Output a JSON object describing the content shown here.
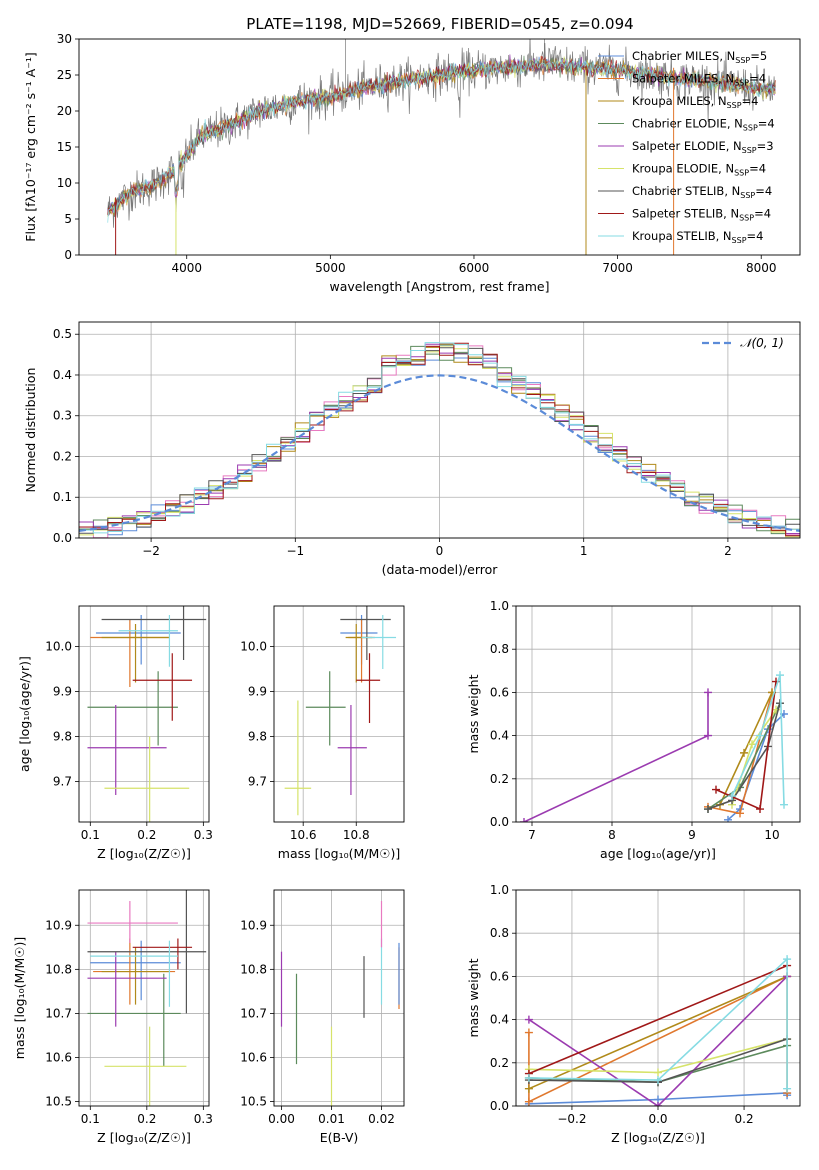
{
  "figure": {
    "title": "PLATE=1198, MJD=52669, FIBERID=0545, z=0.094"
  },
  "colors": [
    "#5b8bd8",
    "#e0782e",
    "#b08a1a",
    "#5c8a5c",
    "#9b3bb0",
    "#d6e36a",
    "#555555",
    "#a01818",
    "#86dbe3"
  ],
  "chart_data": [
    {
      "id": "spectrum",
      "type": "line",
      "xlabel": "wavelength [Angstrom, rest frame]",
      "ylabel": "Flux [f$_\\lambda$10$^{-17}$ erg cm$^{-2}$ s$^{-1}$ A$^{-1}$]",
      "ylabel_display": "Flux [fλ10⁻¹⁷ erg cm⁻² s⁻¹ A⁻¹]",
      "xlim": [
        3250,
        8270
      ],
      "ylim": [
        0,
        30
      ],
      "xticks": [
        4000,
        5000,
        6000,
        7000,
        8000
      ],
      "yticks": [
        0,
        5,
        10,
        15,
        20,
        25,
        30
      ],
      "legend_position": "upper-right",
      "series": [
        {
          "name": "Chabrier MILES, N$_{SSP}$=5",
          "display": "Chabrier MILES, N_SSP=5"
        },
        {
          "name": "Salpeter MILES, N$_{SSP}$=4",
          "display": "Salpeter MILES, N_SSP=4"
        },
        {
          "name": "Kroupa MILES, N$_{SSP}$=4",
          "display": "Kroupa MILES, N_SSP=4"
        },
        {
          "name": "Chabrier ELODIE, N$_{SSP}$=4",
          "display": "Chabrier ELODIE, N_SSP=4"
        },
        {
          "name": "Salpeter ELODIE, N$_{SSP}$=3",
          "display": "Salpeter ELODIE, N_SSP=3"
        },
        {
          "name": "Kroupa ELODIE, N$_{SSP}$=4",
          "display": "Kroupa ELODIE, N_SSP=4"
        },
        {
          "name": "Chabrier STELIB, N$_{SSP}$=4",
          "display": "Chabrier STELIB, N_SSP=4"
        },
        {
          "name": "Salpeter STELIB, N$_{SSP}$=4",
          "display": "Salpeter STELIB, N_SSP=4"
        },
        {
          "name": "Kroupa STELIB, N$_{SSP}$=4",
          "display": "Kroupa STELIB, N_SSP=4"
        }
      ],
      "continuum": {
        "x": [
          3450,
          3600,
          3800,
          3950,
          4100,
          4300,
          4500,
          4800,
          5000,
          5300,
          5600,
          5900,
          6200,
          6500,
          6800,
          7100,
          7400,
          7700,
          8000,
          8100
        ],
        "y": [
          6,
          8.5,
          10,
          12.5,
          16.5,
          18,
          20,
          21.5,
          22,
          23.5,
          24.5,
          25.5,
          26,
          26.5,
          26,
          25.5,
          24.5,
          24,
          23,
          23
        ]
      },
      "dropouts_x": [
        3505,
        3925,
        6780,
        7390
      ]
    },
    {
      "id": "residuals",
      "type": "histogram",
      "xlabel": "(data-model)/error",
      "ylabel": "Normed distribution",
      "xlim": [
        -2.5,
        2.5
      ],
      "ylim": [
        0,
        0.53
      ],
      "xticks": [
        -2,
        -1,
        0,
        1,
        2
      ],
      "xtick_labels": [
        "−2",
        "−1",
        "0",
        "1",
        "2"
      ],
      "yticks": [
        0.0,
        0.1,
        0.2,
        0.3,
        0.4,
        0.5
      ],
      "grid": true,
      "reference_curve": {
        "label": "$\\mathcal{N}(0,1)$",
        "display": "𝒩(0, 1)",
        "style": "dashed",
        "mean": 0,
        "sd": 1
      },
      "bin_width": 0.1,
      "legend_position": "upper-right"
    },
    {
      "id": "age_vs_Z",
      "type": "scatter",
      "xlabel": "Z [log$_{10}$($Z/Z_\\odot$)]",
      "xlabel_display": "Z [log₁₀(Z/Z☉)]",
      "ylabel": "age  [log$_{10}$($age/yr$)]",
      "ylabel_display": "age  [log₁₀(age/yr)]",
      "xlim": [
        0.08,
        0.31
      ],
      "ylim": [
        9.61,
        10.09
      ],
      "xticks": [
        0.1,
        0.2,
        0.3
      ],
      "yticks": [
        9.7,
        9.8,
        9.9,
        10.0
      ],
      "points": [
        {
          "c": 0,
          "x": 0.19,
          "y": 10.03,
          "xerr": [
            0.11,
            0.26
          ],
          "yerr": [
            9.96,
            10.07
          ]
        },
        {
          "c": 1,
          "x": 0.17,
          "y": 10.02,
          "xerr": [
            0.1,
            0.24
          ],
          "yerr": [
            9.91,
            10.06
          ]
        },
        {
          "c": 2,
          "x": 0.18,
          "y": 10.02,
          "xerr": [
            0.12,
            0.24
          ],
          "yerr": [
            9.92,
            10.05
          ]
        },
        {
          "c": 3,
          "x": 0.22,
          "y": 9.865,
          "xerr": [
            0.095,
            0.255
          ],
          "yerr": [
            9.78,
            9.945
          ]
        },
        {
          "c": 4,
          "x": 0.145,
          "y": 9.775,
          "xerr": [
            0.095,
            0.235
          ],
          "yerr": [
            9.67,
            9.87
          ]
        },
        {
          "c": 5,
          "x": 0.205,
          "y": 9.685,
          "xerr": [
            0.125,
            0.275
          ],
          "yerr": [
            9.61,
            9.8
          ]
        },
        {
          "c": 6,
          "x": 0.265,
          "y": 10.06,
          "xerr": [
            0.12,
            0.305
          ],
          "yerr": [
            9.97,
            10.09
          ]
        },
        {
          "c": 7,
          "x": 0.245,
          "y": 9.925,
          "xerr": [
            0.175,
            0.28
          ],
          "yerr": [
            9.835,
            9.985
          ]
        },
        {
          "c": 8,
          "x": 0.24,
          "y": 10.035,
          "xerr": [
            0.15,
            0.255
          ],
          "yerr": [
            9.955,
            10.07
          ]
        }
      ]
    },
    {
      "id": "age_vs_mass",
      "type": "scatter",
      "xlabel": "mass [log$_{10}$($M/M_\\odot$)]",
      "xlabel_display": "mass [log₁₀(M/M☉)]",
      "xlim": [
        10.49,
        10.98
      ],
      "ylim": [
        9.61,
        10.09
      ],
      "xticks": [
        10.6,
        10.8
      ],
      "yticks": [
        9.7,
        9.8,
        9.9,
        10.0
      ],
      "points": [
        {
          "c": 0,
          "x": 10.82,
          "y": 10.03,
          "xerr": [
            10.74,
            10.88
          ],
          "yerr": [
            9.96,
            10.07
          ]
        },
        {
          "c": 1,
          "x": 10.82,
          "y": 10.02,
          "xerr": [
            10.77,
            10.87
          ],
          "yerr": [
            9.92,
            10.06
          ]
        },
        {
          "c": 2,
          "x": 10.8,
          "y": 10.02,
          "xerr": [
            10.76,
            10.86
          ],
          "yerr": [
            9.92,
            10.05
          ]
        },
        {
          "c": 3,
          "x": 10.7,
          "y": 9.865,
          "xerr": [
            10.61,
            10.76
          ],
          "yerr": [
            9.78,
            9.945
          ]
        },
        {
          "c": 4,
          "x": 10.78,
          "y": 9.775,
          "xerr": [
            10.73,
            10.84
          ],
          "yerr": [
            9.67,
            9.87
          ]
        },
        {
          "c": 5,
          "x": 10.58,
          "y": 9.685,
          "xerr": [
            10.53,
            10.63
          ],
          "yerr": [
            9.625,
            9.88
          ]
        },
        {
          "c": 6,
          "x": 10.84,
          "y": 10.06,
          "xerr": [
            10.74,
            10.93
          ],
          "yerr": [
            9.97,
            10.09
          ]
        },
        {
          "c": 7,
          "x": 10.85,
          "y": 9.925,
          "xerr": [
            10.8,
            10.89
          ],
          "yerr": [
            9.83,
            9.985
          ]
        },
        {
          "c": 8,
          "x": 10.9,
          "y": 10.02,
          "xerr": [
            10.82,
            10.95
          ],
          "yerr": [
            9.95,
            10.07
          ]
        }
      ]
    },
    {
      "id": "massweight_vs_age",
      "type": "line",
      "xlabel": "age  [log$_{10}$($age/yr$)]",
      "xlabel_display": "age  [log₁₀(age/yr)]",
      "ylabel": "mass weight",
      "xlim": [
        6.8,
        10.35
      ],
      "ylim": [
        0,
        1.0
      ],
      "xticks": [
        7,
        8,
        9,
        10
      ],
      "yticks": [
        0.0,
        0.2,
        0.4,
        0.6,
        0.8,
        1.0
      ],
      "series": [
        {
          "c": 0,
          "x": [
            9.45,
            9.6,
            9.95,
            10.15
          ],
          "y": [
            0.01,
            0.06,
            0.43,
            0.5
          ]
        },
        {
          "c": 1,
          "x": [
            9.2,
            9.6,
            10.0
          ],
          "y": [
            0.07,
            0.04,
            0.6
          ]
        },
        {
          "c": 2,
          "x": [
            9.35,
            9.65,
            10.0
          ],
          "y": [
            0.08,
            0.32,
            0.6
          ]
        },
        {
          "c": 3,
          "x": [
            9.2,
            9.6,
            10.1
          ],
          "y": [
            0.06,
            0.16,
            0.55
          ]
        },
        {
          "c": 4,
          "x": [
            6.9,
            9.2,
            9.2
          ],
          "y": [
            0.0,
            0.4,
            0.6
          ]
        },
        {
          "c": 5,
          "x": [
            9.5,
            9.75,
            10.05
          ],
          "y": [
            0.08,
            0.36,
            0.52
          ]
        },
        {
          "c": 6,
          "x": [
            9.2,
            9.5,
            9.95,
            10.1
          ],
          "y": [
            0.06,
            0.1,
            0.35,
            0.55
          ]
        },
        {
          "c": 7,
          "x": [
            9.3,
            9.85,
            10.05
          ],
          "y": [
            0.15,
            0.06,
            0.65
          ]
        },
        {
          "c": 8,
          "x": [
            9.5,
            9.85,
            10.1,
            10.15
          ],
          "y": [
            0.12,
            0.4,
            0.68,
            0.08
          ]
        }
      ]
    },
    {
      "id": "mass_vs_Z",
      "type": "scatter",
      "xlabel": "Z [log$_{10}$($Z/Z_\\odot$)]",
      "xlabel_display": "Z [log₁₀(Z/Z☉)]",
      "ylabel": "mass [log$_{10}$($M/M_\\odot$)]",
      "ylabel_display": "mass [log₁₀(M/M☉)]",
      "xlim": [
        0.08,
        0.31
      ],
      "ylim": [
        10.49,
        10.98
      ],
      "xticks": [
        0.1,
        0.2,
        0.3
      ],
      "yticks": [
        10.5,
        10.6,
        10.7,
        10.8,
        10.9
      ],
      "points": [
        {
          "c": 0,
          "x": 0.19,
          "y": 10.815,
          "xerr": [
            0.1,
            0.26
          ],
          "yerr": [
            10.73,
            10.865
          ]
        },
        {
          "c": 1,
          "x": 0.17,
          "y": 10.795,
          "xerr": [
            0.105,
            0.25
          ],
          "yerr": [
            10.72,
            10.87
          ]
        },
        {
          "c": 2,
          "x": 0.18,
          "y": 10.795,
          "xerr": [
            0.12,
            0.24
          ],
          "yerr": [
            10.72,
            10.85
          ]
        },
        {
          "c": 3,
          "x": 0.23,
          "y": 10.7,
          "xerr": [
            0.095,
            0.26
          ],
          "yerr": [
            10.58,
            10.79
          ]
        },
        {
          "c": 4,
          "x": 0.145,
          "y": 10.78,
          "xerr": [
            0.095,
            0.235
          ],
          "yerr": [
            10.67,
            10.84
          ]
        },
        {
          "c": 5,
          "x": 0.205,
          "y": 10.58,
          "xerr": [
            0.125,
            0.27
          ],
          "yerr": [
            10.49,
            10.67
          ]
        },
        {
          "c": 6,
          "x": 0.27,
          "y": 10.84,
          "xerr": [
            0.095,
            0.305
          ],
          "yerr": [
            10.7,
            10.98
          ]
        },
        {
          "c": 7,
          "x": 0.255,
          "y": 10.85,
          "xerr": [
            0.175,
            0.28
          ],
          "yerr": [
            10.8,
            10.87
          ]
        },
        {
          "c": 8,
          "x": 0.24,
          "y": 10.83,
          "xerr": [
            0.1,
            0.255
          ],
          "yerr": [
            10.715,
            10.865
          ]
        },
        {
          "c": 1,
          "x": 0.17,
          "y": 10.905,
          "xerr": [
            0.095,
            0.255
          ],
          "yerr": [
            10.86,
            10.955
          ],
          "pink": true
        }
      ]
    },
    {
      "id": "mass_vs_ebv",
      "type": "scatter",
      "xlabel": "E(B-V)",
      "xlim": [
        -0.0015,
        0.0245
      ],
      "ylim": [
        10.49,
        10.98
      ],
      "xticks": [
        0.0,
        0.01,
        0.02
      ],
      "xtick_labels": [
        "0.00",
        "0.01",
        "0.02"
      ],
      "yticks": [
        10.5,
        10.6,
        10.7,
        10.8,
        10.9
      ],
      "points": [
        {
          "c": 4,
          "x": 0.0,
          "y": 10.78,
          "yerr": [
            10.67,
            10.84
          ]
        },
        {
          "c": 3,
          "x": 0.003,
          "y": 10.7,
          "yerr": [
            10.585,
            10.79
          ]
        },
        {
          "c": 5,
          "x": 0.01,
          "y": 10.58,
          "yerr": [
            10.49,
            10.67
          ]
        },
        {
          "c": 6,
          "x": 0.0165,
          "y": 10.79,
          "yerr": [
            10.69,
            10.83
          ]
        },
        {
          "c": 8,
          "x": 0.02,
          "y": 10.83,
          "yerr": [
            10.72,
            10.87
          ]
        },
        {
          "c": 1,
          "x": 0.02,
          "y": 10.905,
          "yerr": [
            10.85,
            10.955
          ],
          "pink": true
        },
        {
          "c": 1,
          "x": 0.0235,
          "y": 10.79,
          "yerr": [
            10.71,
            10.85
          ]
        },
        {
          "c": 0,
          "x": 0.0235,
          "y": 10.8,
          "yerr": [
            10.72,
            10.86
          ]
        }
      ]
    },
    {
      "id": "massweight_vs_Z",
      "type": "line",
      "xlabel": "Z [log$_{10}$($Z/Z_\\odot$)]",
      "xlabel_display": "Z [log₁₀(Z/Z☉)]",
      "ylabel": "mass weight",
      "xlim": [
        -0.33,
        0.33
      ],
      "ylim": [
        0,
        1.0
      ],
      "xticks": [
        -0.2,
        0.0,
        0.2
      ],
      "xtick_labels": [
        "−0.2",
        "0.0",
        "0.2"
      ],
      "yticks": [
        0.0,
        0.2,
        0.4,
        0.6,
        0.8,
        1.0
      ],
      "series": [
        {
          "c": 0,
          "x": [
            -0.3,
            0.0,
            0.3,
            0.3
          ],
          "y": [
            0.01,
            0.03,
            0.06,
            0.05
          ]
        },
        {
          "c": 1,
          "x": [
            -0.3,
            -0.3,
            0.3,
            0.3
          ],
          "y": [
            0.34,
            0.02,
            0.6,
            0.06
          ]
        },
        {
          "c": 2,
          "x": [
            -0.3,
            0.3
          ],
          "y": [
            0.08,
            0.6
          ]
        },
        {
          "c": 3,
          "x": [
            -0.3,
            0.0,
            0.3
          ],
          "y": [
            0.13,
            0.11,
            0.28
          ]
        },
        {
          "c": 4,
          "x": [
            -0.3,
            0.0,
            0.3
          ],
          "y": [
            0.4,
            0.0,
            0.6
          ]
        },
        {
          "c": 5,
          "x": [
            -0.3,
            0.0,
            0.3
          ],
          "y": [
            0.17,
            0.155,
            0.31
          ]
        },
        {
          "c": 6,
          "x": [
            -0.3,
            0.0,
            0.3
          ],
          "y": [
            0.12,
            0.11,
            0.31
          ]
        },
        {
          "c": 7,
          "x": [
            -0.3,
            0.3
          ],
          "y": [
            0.15,
            0.65
          ]
        },
        {
          "c": 8,
          "x": [
            -0.3,
            0.0,
            0.3,
            0.3
          ],
          "y": [
            0.13,
            0.12,
            0.68,
            0.08
          ]
        }
      ]
    }
  ]
}
